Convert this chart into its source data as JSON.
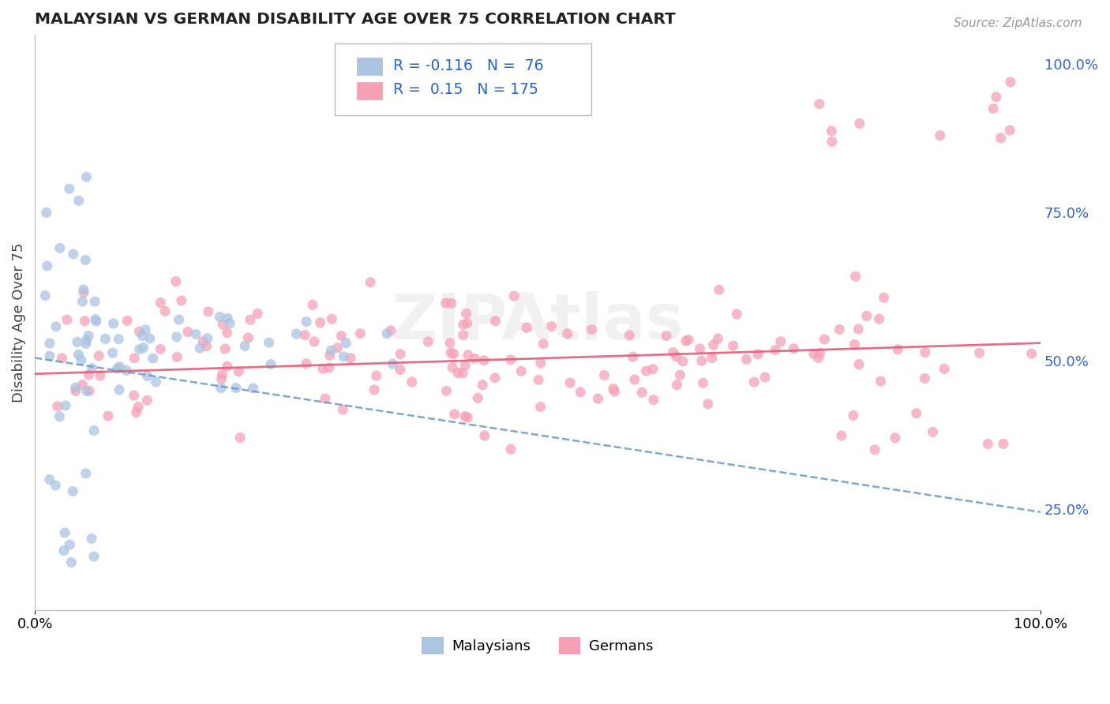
{
  "title": "MALAYSIAN VS GERMAN DISABILITY AGE OVER 75 CORRELATION CHART",
  "source": "Source: ZipAtlas.com",
  "ylabel": "Disability Age Over 75",
  "xlim": [
    0,
    1
  ],
  "ylim": [
    0.08,
    1.05
  ],
  "right_yticks": [
    0.25,
    0.5,
    0.75,
    1.0
  ],
  "right_yticklabels": [
    "25.0%",
    "50.0%",
    "75.0%",
    "100.0%"
  ],
  "malaysian_color": "#aac4e2",
  "german_color": "#f5a0b5",
  "malaysian_trend_color": "#6699cc",
  "german_trend_color": "#e0607a",
  "malaysian_R": -0.116,
  "malaysian_N": 76,
  "german_R": 0.15,
  "german_N": 175,
  "legend_R_color": "#2266cc",
  "watermark": "ZIPAtlas",
  "background_color": "#ffffff",
  "grid_color": "#d0d0d0",
  "mal_trend_start_y": 0.505,
  "mal_trend_end_y": 0.245,
  "ger_trend_start_y": 0.478,
  "ger_trend_end_y": 0.53
}
